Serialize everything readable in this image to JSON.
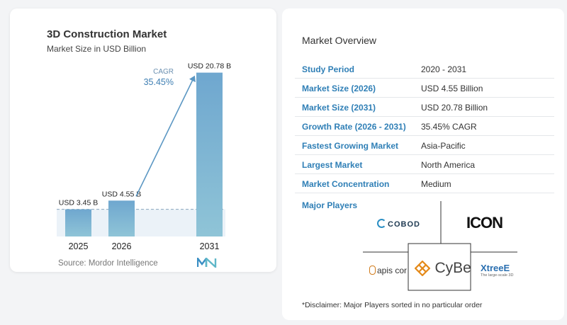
{
  "chart_card": {
    "title": "3D Construction Market",
    "subtitle": "Market Size in USD Billion",
    "source": "Source:  Mordor Intelligence",
    "cagr_label": "CAGR",
    "cagr_value": "35.45%"
  },
  "chart_data": {
    "type": "bar",
    "title": "3D Construction Market",
    "subtitle": "Market Size in USD Billion",
    "categories": [
      "2025",
      "2026",
      "2031"
    ],
    "values": [
      3.45,
      4.55,
      20.78
    ],
    "data_labels": [
      "USD 3.45 B",
      "USD 4.55 B",
      "USD 20.78 B"
    ],
    "ylim": [
      0,
      22
    ],
    "annotation": {
      "label": "CAGR",
      "value": "35.45%"
    },
    "grid": false,
    "colors": {
      "bar_top": "#6fa7cf",
      "bar_bottom": "#8fc4d7",
      "arrow": "#5b97c3",
      "baseline_band": "#dde9f3"
    }
  },
  "overview": {
    "title": "Market Overview",
    "rows": [
      {
        "label": "Study Period",
        "value": "2020 - 2031"
      },
      {
        "label": "Market Size (2026)",
        "value": "USD 4.55 Billion"
      },
      {
        "label": "Market Size (2031)",
        "value": "USD 20.78 Billion"
      },
      {
        "label": "Growth Rate (2026 - 2031)",
        "value": "35.45% CAGR"
      },
      {
        "label": "Fastest Growing Market",
        "value": "Asia-Pacific"
      },
      {
        "label": "Largest Market",
        "value": "North America"
      },
      {
        "label": "Market Concentration",
        "value": "Medium"
      }
    ],
    "players_title": "Major Players",
    "players": [
      "COBOD",
      "ICON",
      "apis cor",
      "CyBe",
      "XtreeE"
    ],
    "xtreee_tagline": "The large-scale 3D",
    "disclaimer": "*Disclaimer: Major Players sorted in no particular order"
  },
  "colors": {
    "accent": "#2f7fb6",
    "text": "#333333"
  }
}
